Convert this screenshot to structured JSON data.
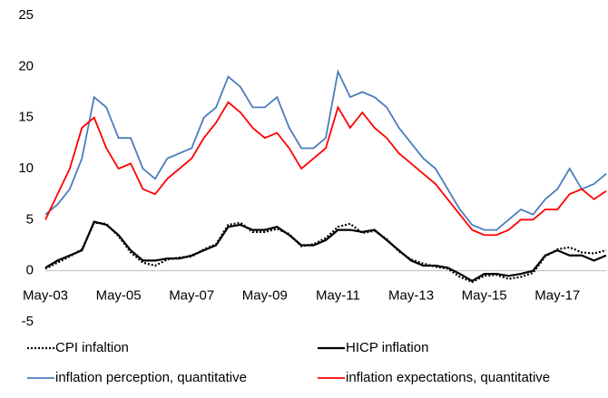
{
  "chart_data": {
    "type": "line",
    "categories": [
      "May-03",
      null,
      null,
      null,
      null,
      null,
      "May-05",
      null,
      null,
      null,
      null,
      null,
      "May-07",
      null,
      null,
      null,
      null,
      null,
      "May-09",
      null,
      null,
      null,
      null,
      null,
      "May-11",
      null,
      null,
      null,
      null,
      null,
      "May-13",
      null,
      null,
      null,
      null,
      null,
      "May-15",
      null,
      null,
      null,
      null,
      null,
      "May-17",
      null,
      null,
      null,
      null
    ],
    "ylim": [
      -5,
      25
    ],
    "yticks": [
      -5,
      0,
      5,
      10,
      15,
      20,
      25
    ],
    "grid": false,
    "series": [
      {
        "name": "CPI infaltion",
        "color": "#000000",
        "dash": "dotted",
        "values": [
          0.2,
          0.8,
          1.4,
          2.1,
          4.7,
          4.6,
          3.4,
          1.8,
          0.8,
          0.5,
          1.1,
          1.3,
          1.4,
          2.1,
          2.6,
          4.5,
          4.7,
          3.8,
          3.8,
          4.1,
          3.6,
          2.4,
          2.6,
          3.2,
          4.3,
          4.6,
          3.7,
          3.9,
          3.1,
          1.9,
          1.1,
          0.7,
          0.4,
          0.2,
          -0.6,
          -1.1,
          -0.5,
          -0.4,
          -0.8,
          -0.6,
          -0.2,
          1.4,
          2.1,
          2.3,
          1.8,
          1.7,
          2.0
        ]
      },
      {
        "name": "HICP inflation",
        "color": "#000000",
        "dash": "solid",
        "values": [
          0.3,
          1.0,
          1.5,
          2.0,
          4.8,
          4.5,
          3.5,
          2.0,
          1.0,
          1.0,
          1.2,
          1.2,
          1.5,
          2.0,
          2.5,
          4.3,
          4.5,
          4.0,
          4.0,
          4.3,
          3.5,
          2.5,
          2.5,
          3.0,
          4.0,
          4.0,
          3.8,
          4.0,
          3.0,
          2.0,
          1.0,
          0.5,
          0.5,
          0.3,
          -0.3,
          -1.0,
          -0.3,
          -0.3,
          -0.5,
          -0.3,
          0.0,
          1.5,
          2.0,
          1.5,
          1.5,
          1.0,
          1.5
        ]
      },
      {
        "name": "inflation perception, quantitative",
        "color": "#4a7ebb",
        "dash": "solid",
        "values": [
          5.5,
          6.5,
          8,
          11,
          17,
          16,
          13,
          13,
          10,
          9,
          11,
          11.5,
          12,
          15,
          16,
          19,
          18,
          16,
          16,
          17,
          14,
          12,
          12,
          13,
          19.5,
          17,
          17.5,
          17,
          16,
          14,
          12.5,
          11,
          10,
          8,
          6,
          4.5,
          4,
          4,
          5,
          6,
          5.5,
          7,
          8,
          10,
          8,
          8.5,
          9.5
        ]
      },
      {
        "name": "inflation expectations, quantitative",
        "color": "#ff0000",
        "dash": "solid",
        "values": [
          5,
          7.5,
          10,
          14,
          15,
          12,
          10,
          10.5,
          8,
          7.5,
          9,
          10,
          11,
          13,
          14.5,
          16.5,
          15.5,
          14,
          13,
          13.5,
          12,
          10,
          11,
          12,
          16,
          14,
          15.5,
          14,
          13,
          11.5,
          10.5,
          9.5,
          8.5,
          7,
          5.5,
          4,
          3.5,
          3.5,
          4,
          5,
          5,
          6,
          6,
          7.5,
          8,
          7,
          7.8
        ]
      }
    ]
  }
}
